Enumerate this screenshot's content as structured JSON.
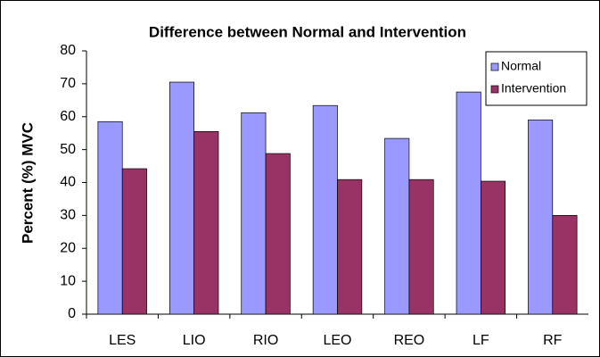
{
  "chart_data": {
    "type": "bar",
    "title": "Difference between Normal and Intervention",
    "y_label": "Percent (%) MVC",
    "categories": [
      "LES",
      "LIO",
      "RIO",
      "LEO",
      "REO",
      "LF",
      "RF"
    ],
    "series": [
      {
        "name": "Normal",
        "color": "#9999ff",
        "values": [
          58.5,
          70.5,
          61.2,
          63.4,
          53.4,
          67.5,
          59
        ]
      },
      {
        "name": "Intervention",
        "color": "#993366",
        "values": [
          44.2,
          55.5,
          48.8,
          40.9,
          40.9,
          40.4,
          30
        ]
      }
    ],
    "ylim": [
      0,
      80
    ],
    "yticks": [
      0,
      10,
      20,
      30,
      40,
      50,
      60,
      70,
      80
    ],
    "grid": false,
    "legend": "top-right"
  }
}
